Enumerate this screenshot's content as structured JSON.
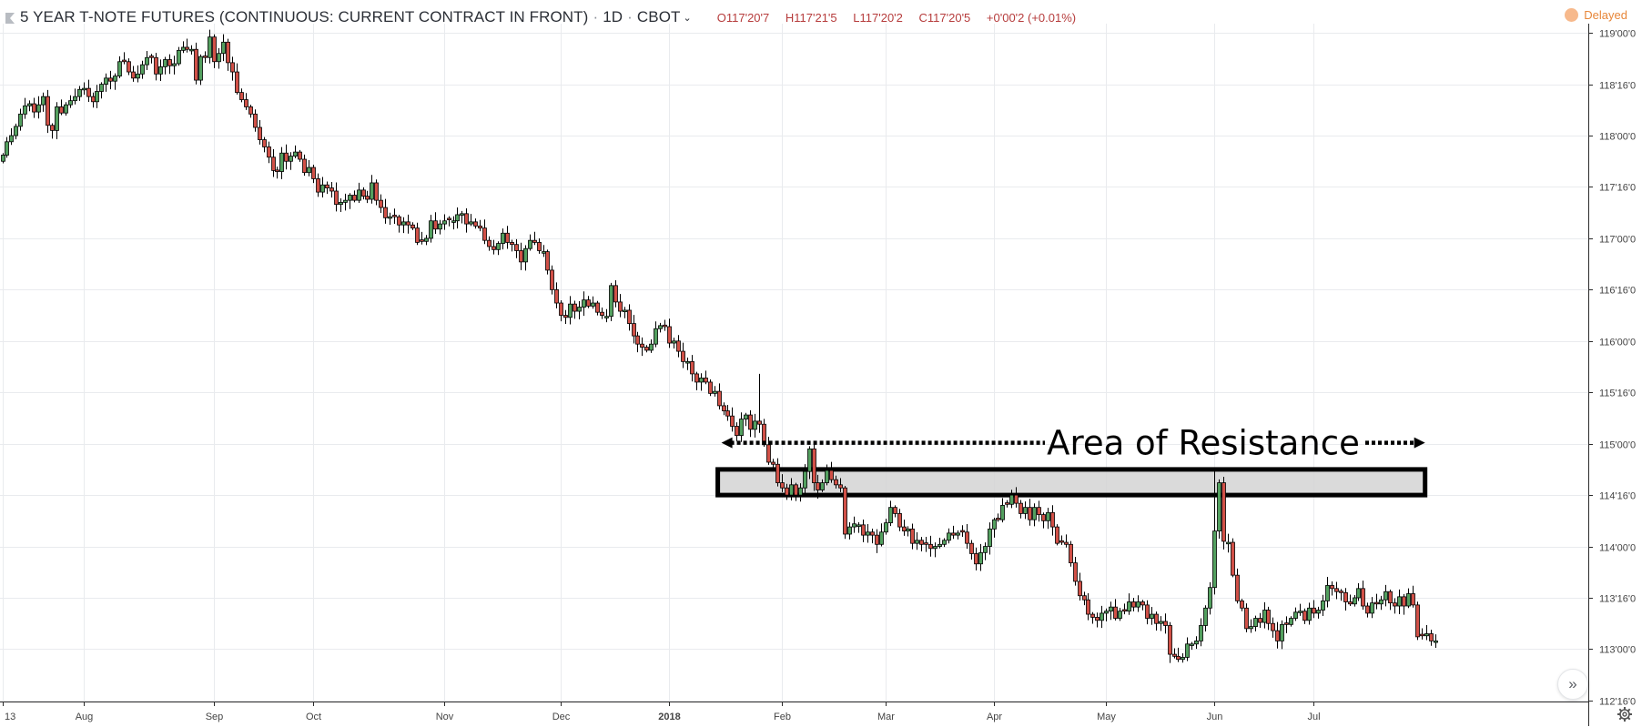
{
  "header": {
    "title": "5 YEAR T-NOTE FUTURES (CONTINUOUS: CURRENT CONTRACT IN FRONT)",
    "interval": "1D",
    "exchange": "CBOT",
    "open": "O117'20'7",
    "high": "H117'21'5",
    "low": "L117'20'2",
    "close": "C117'20'5",
    "change": "+0'00'2 (+0.01%)",
    "delayed_label": "Delayed"
  },
  "colors": {
    "up": "#53a05f",
    "down": "#d15047",
    "grid": "#e9ebee",
    "axis_text": "#444444",
    "ohlc_text": "#b63c3c",
    "delayed": "#e8873a",
    "zone_fill": "#d4d4d4"
  },
  "icons": {
    "flag": "flag-icon",
    "chevron": "chevron-down-icon",
    "scroll": "double-chevron-right-icon",
    "settings": "gear-icon",
    "status": "delayed-dot-icon"
  },
  "chart_data": {
    "type": "candlestick",
    "y_axis": {
      "labels": [
        "119'00'0",
        "118'16'0",
        "118'00'0",
        "117'16'0",
        "117'00'0",
        "116'16'0",
        "116'00'0",
        "115'16'0",
        "115'00'0",
        "114'16'0",
        "114'00'0",
        "113'16'0",
        "113'00'0",
        "112'16'0"
      ],
      "values": [
        119.0,
        118.5,
        118.0,
        117.5,
        117.0,
        116.5,
        116.0,
        115.5,
        115.0,
        114.5,
        114.0,
        113.5,
        113.0,
        112.5
      ],
      "ylim": [
        112.49,
        119.09
      ]
    },
    "x_axis": {
      "labels": [
        "13",
        "Aug",
        "Sep",
        "Oct",
        "Nov",
        "Dec",
        "2018",
        "Feb",
        "Mar",
        "Apr",
        "May",
        "Jun",
        "Jul"
      ],
      "positions": [
        0,
        18,
        47,
        69,
        98,
        124,
        148,
        173,
        196,
        220,
        245,
        269,
        291
      ]
    },
    "annotation": {
      "text": "Area of Resistance",
      "zone": [
        114.5,
        114.75
      ],
      "arrow_level": 115.0,
      "x_range": [
        158,
        316
      ]
    },
    "candle_count": 317,
    "closes": [
      117.81,
      117.94,
      118.0,
      118.09,
      118.21,
      118.29,
      118.31,
      118.23,
      118.3,
      118.38,
      118.1,
      118.05,
      118.28,
      118.22,
      118.3,
      118.34,
      118.38,
      118.45,
      118.46,
      118.38,
      118.33,
      118.43,
      118.5,
      118.56,
      118.53,
      118.58,
      118.72,
      118.72,
      118.62,
      118.56,
      118.6,
      118.69,
      118.76,
      118.76,
      118.6,
      118.67,
      118.74,
      118.68,
      118.7,
      118.83,
      118.86,
      118.84,
      118.84,
      118.54,
      118.77,
      118.76,
      118.96,
      118.72,
      118.8,
      118.91,
      118.71,
      118.62,
      118.42,
      118.35,
      118.28,
      118.21,
      118.08,
      117.96,
      117.89,
      117.79,
      117.66,
      117.65,
      117.83,
      117.75,
      117.8,
      117.84,
      117.77,
      117.64,
      117.69,
      117.58,
      117.45,
      117.52,
      117.49,
      117.46,
      117.33,
      117.35,
      117.37,
      117.42,
      117.37,
      117.47,
      117.41,
      117.38,
      117.54,
      117.37,
      117.3,
      117.2,
      117.21,
      117.21,
      117.13,
      117.16,
      117.13,
      117.1,
      116.96,
      116.97,
      117.0,
      117.17,
      117.09,
      117.14,
      117.17,
      117.18,
      117.17,
      117.23,
      117.24,
      117.14,
      117.16,
      117.12,
      117.1,
      116.98,
      116.92,
      116.89,
      116.95,
      117.05,
      116.96,
      116.94,
      116.88,
      116.77,
      116.9,
      116.98,
      116.96,
      116.88,
      116.87,
      116.69,
      116.5,
      116.37,
      116.25,
      116.23,
      116.36,
      116.29,
      116.33,
      116.4,
      116.34,
      116.37,
      116.28,
      116.25,
      116.24,
      116.54,
      116.38,
      116.29,
      116.3,
      116.17,
      116.05,
      115.97,
      115.94,
      115.91,
      115.97,
      116.12,
      116.15,
      116.14,
      115.98,
      116.0,
      115.9,
      115.8,
      115.8,
      115.68,
      115.6,
      115.64,
      115.6,
      115.49,
      115.51,
      115.37,
      115.32,
      115.27,
      115.17,
      115.08,
      115.24,
      115.28,
      115.14,
      115.22,
      115.19,
      114.99,
      114.82,
      114.8,
      114.62,
      114.57,
      114.5,
      114.6,
      114.5,
      114.57,
      114.73,
      114.95,
      114.62,
      114.55,
      114.62,
      114.74,
      114.65,
      114.6,
      114.57,
      114.12,
      114.19,
      114.22,
      114.21,
      114.11,
      114.14,
      114.11,
      114.02,
      114.14,
      114.23,
      114.38,
      114.32,
      114.19,
      114.15,
      114.17,
      114.03,
      114.06,
      114.02,
      114.02,
      113.98,
      114.0,
      114.02,
      114.06,
      114.13,
      114.11,
      114.13,
      114.14,
      114.03,
      113.93,
      113.83,
      113.94,
      114.0,
      114.17,
      114.26,
      114.26,
      114.4,
      114.41,
      114.5,
      114.42,
      114.32,
      114.38,
      114.26,
      114.38,
      114.31,
      114.25,
      114.33,
      114.19,
      114.03,
      114.04,
      114.02,
      113.84,
      113.66,
      113.52,
      113.48,
      113.34,
      113.31,
      113.28,
      113.35,
      113.37,
      113.41,
      113.3,
      113.37,
      113.37,
      113.46,
      113.41,
      113.46,
      113.43,
      113.3,
      113.34,
      113.25,
      113.27,
      113.23,
      112.95,
      112.93,
      112.9,
      112.92,
      113.05,
      113.05,
      113.08,
      113.23,
      113.4,
      113.6,
      114.15,
      114.62,
      114.05,
      114.04,
      113.72,
      113.47,
      113.4,
      113.2,
      113.22,
      113.3,
      113.26,
      113.38,
      113.25,
      113.18,
      113.08,
      113.24,
      113.24,
      113.3,
      113.36,
      113.37,
      113.28,
      113.4,
      113.35,
      113.38,
      113.47,
      113.62,
      113.59,
      113.56,
      113.55,
      113.46,
      113.44,
      113.5,
      113.59,
      113.42,
      113.35,
      113.45,
      113.44,
      113.48,
      113.56,
      113.45,
      113.42,
      113.51,
      113.42,
      113.54,
      113.43,
      113.12,
      113.13,
      113.15,
      113.08,
      113.08
    ],
    "price_unit": "1/32nds (futures quote)"
  }
}
